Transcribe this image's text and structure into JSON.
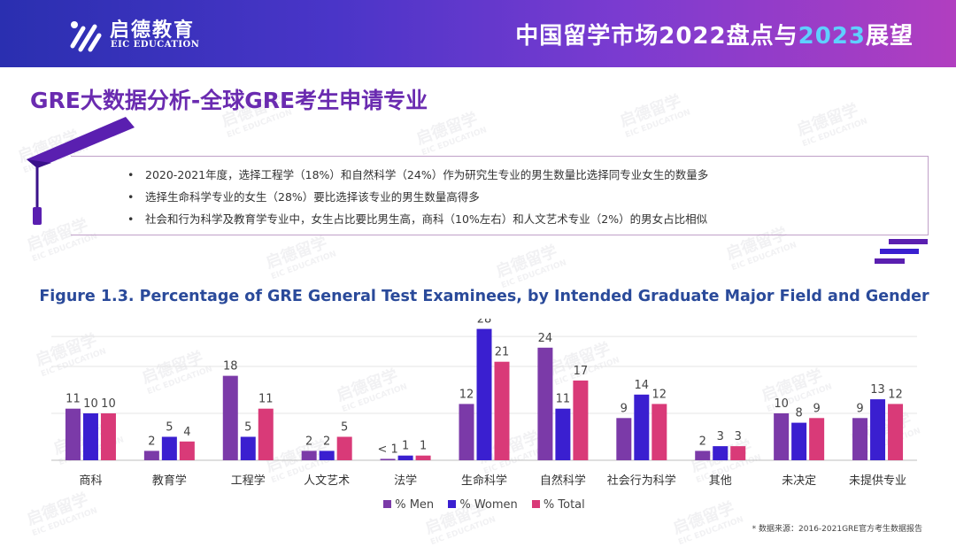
{
  "header": {
    "brand_cn": "启德教育",
    "brand_en": "EIC EDUCATION",
    "title_part1": "中国留学市场2022盘点与",
    "title_highlight": "2023",
    "title_part2": "展望"
  },
  "page_title": "GRE大数据分析-全球GRE考生申请专业",
  "bullets": [
    "2020-2021年度，选择工程学（18%）和自然科学（24%）作为研究生专业的男生数量比选择同专业女生的数量多",
    "选择生命科学专业的女生（28%）要比选择该专业的男生数量高得多",
    "社会和行为科学及教育学专业中，女生占比要比男生高，商科（10%左右）和人文艺术专业（2%）的男女占比相似"
  ],
  "watermark": {
    "cn": "启德留学",
    "en": "EIC EDUCATION"
  },
  "source": "* 数据来源：2016-2021GRE官方考生数据报告",
  "colors": {
    "men": "#7b3aa8",
    "women": "#3a1fd0",
    "total": "#d93a78",
    "title": "#6a2bb0",
    "figure_title": "#2a4a9a"
  },
  "chart_data": {
    "type": "bar",
    "title": "Figure 1.3. Percentage of GRE General Test Examinees, by Intended Graduate Major Field and Gender",
    "categories": [
      "商科",
      "教育学",
      "工程学",
      "人文艺术",
      "法学",
      "生命科学",
      "自然科学",
      "社会行为科学",
      "其他",
      "未决定",
      "未提供专业"
    ],
    "series": [
      {
        "name": "% Men",
        "values": [
          11,
          2,
          18,
          2,
          0.3,
          12,
          24,
          9,
          2,
          10,
          9
        ]
      },
      {
        "name": "% Women",
        "values": [
          10,
          5,
          5,
          2,
          1,
          28,
          11,
          14,
          3,
          8,
          13
        ]
      },
      {
        "name": "% Total",
        "values": [
          10,
          4,
          11,
          5,
          1,
          21,
          17,
          12,
          3,
          9,
          12
        ]
      }
    ],
    "data_labels": [
      [
        "11",
        "2",
        "18",
        "2",
        "< 1",
        "12",
        "24",
        "9",
        "2",
        "10",
        "9"
      ],
      [
        "10",
        "5",
        "5",
        "2",
        "1",
        "28",
        "11",
        "14",
        "3",
        "8",
        "13"
      ],
      [
        "10",
        "4",
        "11",
        "5",
        "1",
        "21",
        "17",
        "12",
        "3",
        "9",
        "12"
      ]
    ],
    "ylim": [
      0,
      30
    ],
    "grid": true,
    "legend": "bottom"
  }
}
